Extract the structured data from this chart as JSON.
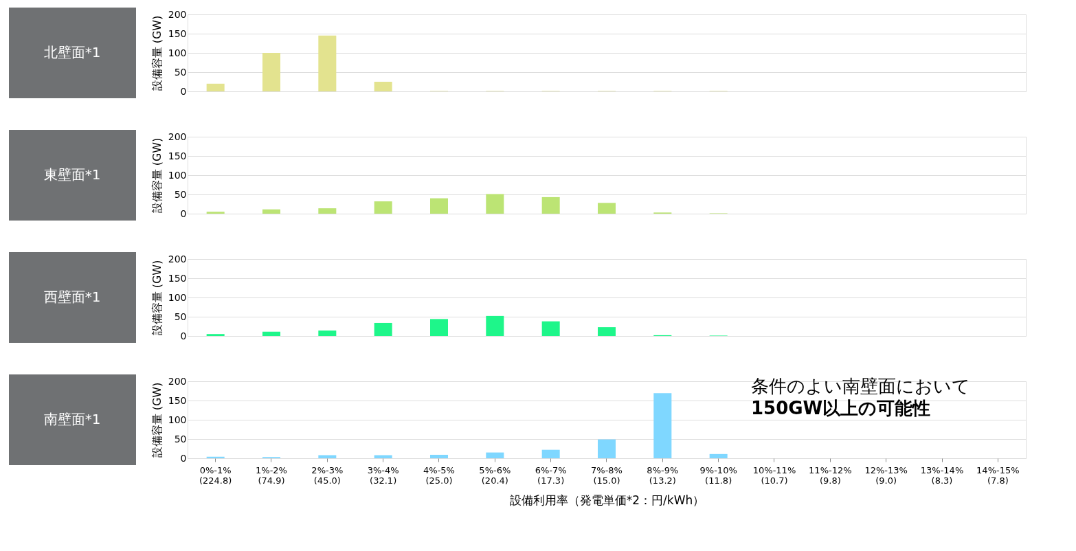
{
  "chart_data": [
    {
      "type": "bar",
      "title": "北壁面*1",
      "ylabel": "設備容量 (GW)",
      "color": "#e3e38f",
      "ylim": [
        0,
        200
      ],
      "yticks": [
        0,
        50,
        100,
        150,
        200
      ],
      "grid": "y",
      "tick_labels": "y",
      "categories": [
        "0%-1%\n(224.8)",
        "1%-2%\n(74.9)",
        "2%-3%\n(45.0)",
        "3%-4%\n(32.1)",
        "4%-5%\n(25.0)",
        "5%-6%\n(20.4)",
        "6%-7%\n(17.3)",
        "7%-8%\n(15.0)",
        "8%-9%\n(13.2)",
        "9%-10%\n(11.8)",
        "10%-11%\n(10.7)",
        "11%-12%\n(9.8)",
        "12%-13%\n(9.0)",
        "13%-14%\n(8.3)",
        "14%-15%\n(7.8)"
      ],
      "values": [
        20,
        100,
        145,
        25,
        1,
        1,
        1,
        1,
        1,
        1,
        null,
        null,
        null,
        null,
        null
      ]
    },
    {
      "type": "bar",
      "title": "東壁面*1",
      "ylabel": "設備容量 (GW)",
      "color": "#bce474",
      "ylim": [
        0,
        200
      ],
      "yticks": [
        0,
        50,
        100,
        150,
        200
      ],
      "grid": "y",
      "tick_labels": "y",
      "categories": [
        "0%-1%\n(224.8)",
        "1%-2%\n(74.9)",
        "2%-3%\n(45.0)",
        "3%-4%\n(32.1)",
        "4%-5%\n(25.0)",
        "5%-6%\n(20.4)",
        "6%-7%\n(17.3)",
        "7%-8%\n(15.0)",
        "8%-9%\n(13.2)",
        "9%-10%\n(11.8)",
        "10%-11%\n(10.7)",
        "11%-12%\n(9.8)",
        "12%-13%\n(9.0)",
        "13%-14%\n(8.3)",
        "14%-15%\n(7.8)"
      ],
      "values": [
        5,
        11,
        14,
        32,
        40,
        51,
        43,
        28,
        3,
        1,
        null,
        null,
        null,
        null,
        null
      ]
    },
    {
      "type": "bar",
      "title": "西壁面*1",
      "ylabel": "設備容量 (GW)",
      "color": "#1ef68a",
      "ylim": [
        0,
        200
      ],
      "yticks": [
        0,
        50,
        100,
        150,
        200
      ],
      "grid": "y",
      "tick_labels": "y",
      "categories": [
        "0%-1%\n(224.8)",
        "1%-2%\n(74.9)",
        "2%-3%\n(45.0)",
        "3%-4%\n(32.1)",
        "4%-5%\n(25.0)",
        "5%-6%\n(20.4)",
        "6%-7%\n(17.3)",
        "7%-8%\n(15.0)",
        "8%-9%\n(13.2)",
        "9%-10%\n(11.8)",
        "10%-11%\n(10.7)",
        "11%-12%\n(9.8)",
        "12%-13%\n(9.0)",
        "13%-14%\n(8.3)",
        "14%-15%\n(7.8)"
      ],
      "values": [
        5,
        11,
        14,
        34,
        44,
        52,
        38,
        23,
        2,
        1,
        null,
        null,
        null,
        null,
        null
      ]
    },
    {
      "type": "bar",
      "title": "南壁面*1",
      "ylabel": "設備容量 (GW)",
      "xlabel": "設備利用率（発電単価*2：円/kWh）",
      "color": "#7fd7ff",
      "ylim": [
        0,
        200
      ],
      "yticks": [
        0,
        50,
        100,
        150,
        200
      ],
      "grid": "y",
      "categories": [
        "0%-1%\n(224.8)",
        "1%-2%\n(74.9)",
        "2%-3%\n(45.0)",
        "3%-4%\n(32.1)",
        "4%-5%\n(25.0)",
        "5%-6%\n(20.4)",
        "6%-7%\n(17.3)",
        "7%-8%\n(15.0)",
        "8%-9%\n(13.2)",
        "9%-10%\n(11.8)",
        "10%-11%\n(10.7)",
        "11%-12%\n(9.8)",
        "12%-13%\n(9.0)",
        "13%-14%\n(8.3)",
        "14%-15%\n(7.8)"
      ],
      "values": [
        4,
        3,
        8,
        8,
        9,
        15,
        22,
        49,
        169,
        11,
        null,
        null,
        null,
        null,
        null
      ],
      "annotations": [
        "条件のよい南壁面において",
        "150GW以上の可能性"
      ]
    }
  ]
}
